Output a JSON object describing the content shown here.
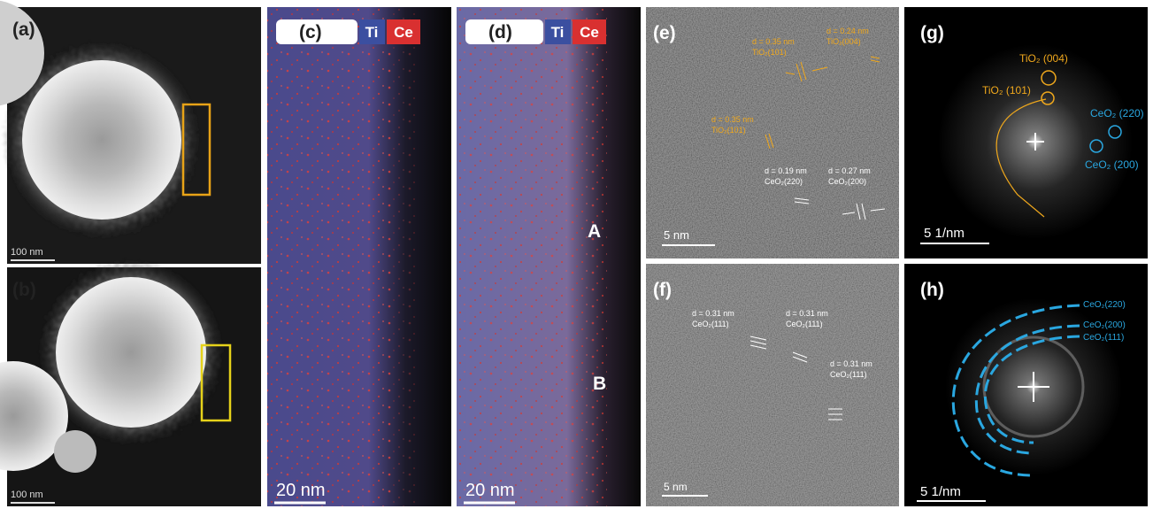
{
  "panels": {
    "a": {
      "label": "(a)",
      "scale_bar": "100 nm"
    },
    "b": {
      "label": "(b)",
      "scale_bar": "100 nm"
    },
    "c": {
      "label": "(c)",
      "legend": [
        "Ti",
        "Ce"
      ],
      "scale_bar": "20 nm"
    },
    "d": {
      "label": "(d)",
      "legend": [
        "Ti",
        "Ce"
      ],
      "scale_bar": "20 nm",
      "regions": [
        "A",
        "B"
      ]
    },
    "e": {
      "label": "(e)",
      "scale_bar": "5 nm",
      "annotations": [
        {
          "spacing": "d = 0.35 nm",
          "plane": "TiO₂(101)"
        },
        {
          "spacing": "d = 0.24 nm",
          "plane": "TiO₂(004)"
        },
        {
          "spacing": "d = 0.35 nm",
          "plane": "TiO₂(101)"
        },
        {
          "spacing": "d = 0.19 nm",
          "plane": "CeO₂(220)"
        },
        {
          "spacing": "d = 0.27 nm",
          "plane": "CeO₂(200)"
        }
      ]
    },
    "f": {
      "label": "(f)",
      "scale_bar": "5 nm",
      "annotations": [
        {
          "spacing": "d = 0.31 nm",
          "plane": "CeO₂(111)"
        },
        {
          "spacing": "d = 0.31 nm",
          "plane": "CeO₂(111)"
        },
        {
          "spacing": "d = 0.31 nm",
          "plane": "CeO₂(111)"
        }
      ]
    },
    "g": {
      "label": "(g)",
      "scale_bar": "5 1/nm",
      "spots": [
        "TiO₂ (004)",
        "TiO₂ (101)",
        "CeO₂ (220)",
        "CeO₂ (200)"
      ]
    },
    "h": {
      "label": "(h)",
      "scale_bar": "5 1/nm",
      "rings": [
        "CeO₂(220)",
        "CeO₂(200)",
        "CeO₂(111)"
      ]
    }
  }
}
